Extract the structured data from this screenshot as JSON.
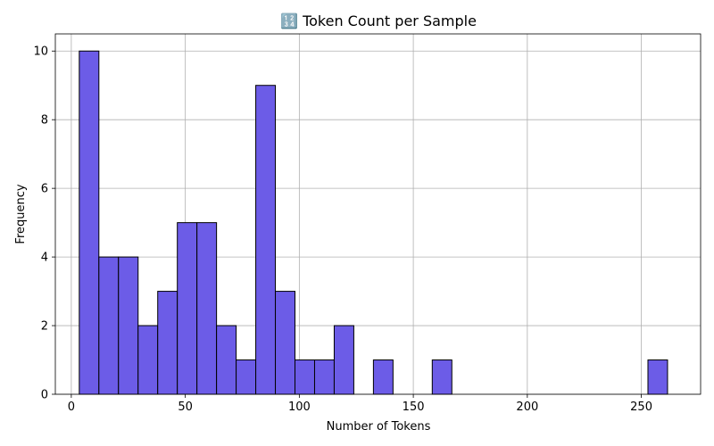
{
  "chart_data": {
    "type": "bar",
    "subtype": "histogram",
    "title": "🔢 Token Count per Sample",
    "xlabel": "Number of Tokens",
    "ylabel": "Frequency",
    "xlim": [
      -7,
      276
    ],
    "ylim": [
      0,
      10.5
    ],
    "xticks": [
      0,
      50,
      100,
      150,
      200,
      250
    ],
    "yticks": [
      0,
      2,
      4,
      6,
      8,
      10
    ],
    "grid": true,
    "bin_width": 8.6,
    "bin_start": 3.5,
    "num_bins": 30,
    "values": [
      10,
      4,
      4,
      2,
      3,
      5,
      5,
      2,
      1,
      9,
      3,
      1,
      1,
      2,
      0,
      1,
      0,
      0,
      1,
      0,
      0,
      0,
      0,
      0,
      0,
      0,
      0,
      0,
      0,
      1
    ],
    "color": "#6c5ce7",
    "edge_color": "#000000"
  }
}
